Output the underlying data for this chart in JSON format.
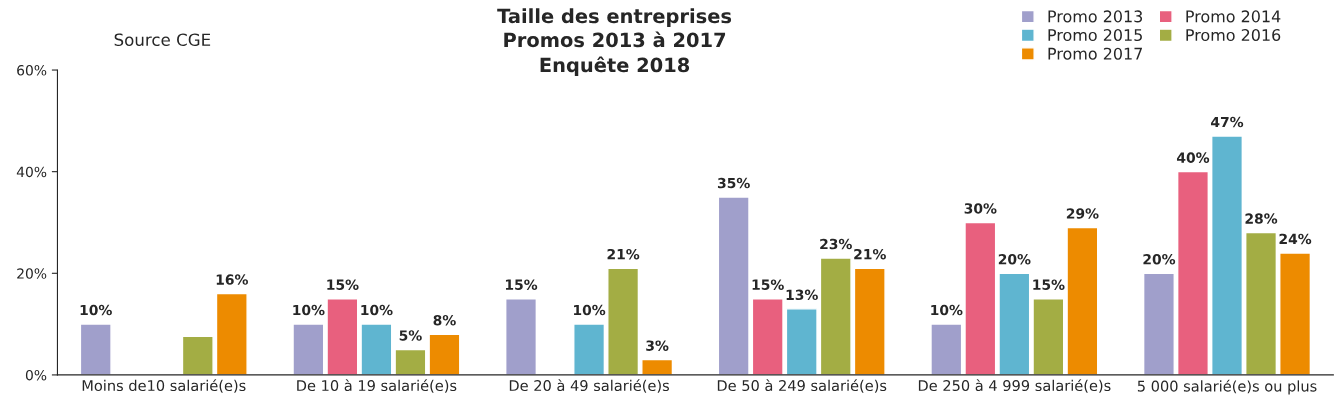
{
  "chart_data": {
    "type": "bar",
    "title": "Taille des entreprises\nPromos 2013 à 2017\nEnquête 2018",
    "annotations": [
      "Source CGE"
    ],
    "categories": [
      "Moins de10 salarié(e)s",
      "De 10 à 19 salarié(e)s",
      "De 20 à 49 salarié(e)s",
      "De 50 à 249 salarié(e)s",
      "De 250 à 4 999 salarié(e)s",
      "5 000 salarié(e)s ou plus"
    ],
    "series": [
      {
        "name": "Promo 2013",
        "color": "#a09fcb",
        "values": [
          10,
          10,
          15,
          35,
          10,
          20
        ],
        "value_labels": [
          "10%",
          "10%",
          "15%",
          "35%",
          "10%",
          "20%"
        ]
      },
      {
        "name": "Promo 2014",
        "color": "#e8607e",
        "values": [
          null,
          15,
          null,
          15,
          30,
          40
        ],
        "value_labels": [
          null,
          "15%",
          null,
          "15%",
          "30%",
          "40%"
        ]
      },
      {
        "name": "Promo 2015",
        "color": "#5fb5d0",
        "values": [
          null,
          10,
          10,
          13,
          20,
          47
        ],
        "value_labels": [
          null,
          "10%",
          "10%",
          "13%",
          "20%",
          "47%"
        ]
      },
      {
        "name": "Promo 2016",
        "color": "#a3ad44",
        "values": [
          7.6,
          5,
          21,
          23,
          15,
          28
        ],
        "value_labels": [
          null,
          "5%",
          "21%",
          "23%",
          "15%",
          "28%"
        ]
      },
      {
        "name": "Promo 2017",
        "color": "#ed8b00",
        "values": [
          16,
          8,
          3,
          21,
          29,
          24
        ],
        "value_labels": [
          "16%",
          "8%",
          "3%",
          "21%",
          "29%",
          "24%"
        ]
      }
    ],
    "ylim": [
      0,
      60
    ],
    "yticks": [
      {
        "value": 0,
        "label": "0%"
      },
      {
        "value": 20,
        "label": "20%"
      },
      {
        "value": 40,
        "label": "40%"
      },
      {
        "value": 60,
        "label": "60%"
      }
    ],
    "grid": false,
    "legend": "top right"
  }
}
